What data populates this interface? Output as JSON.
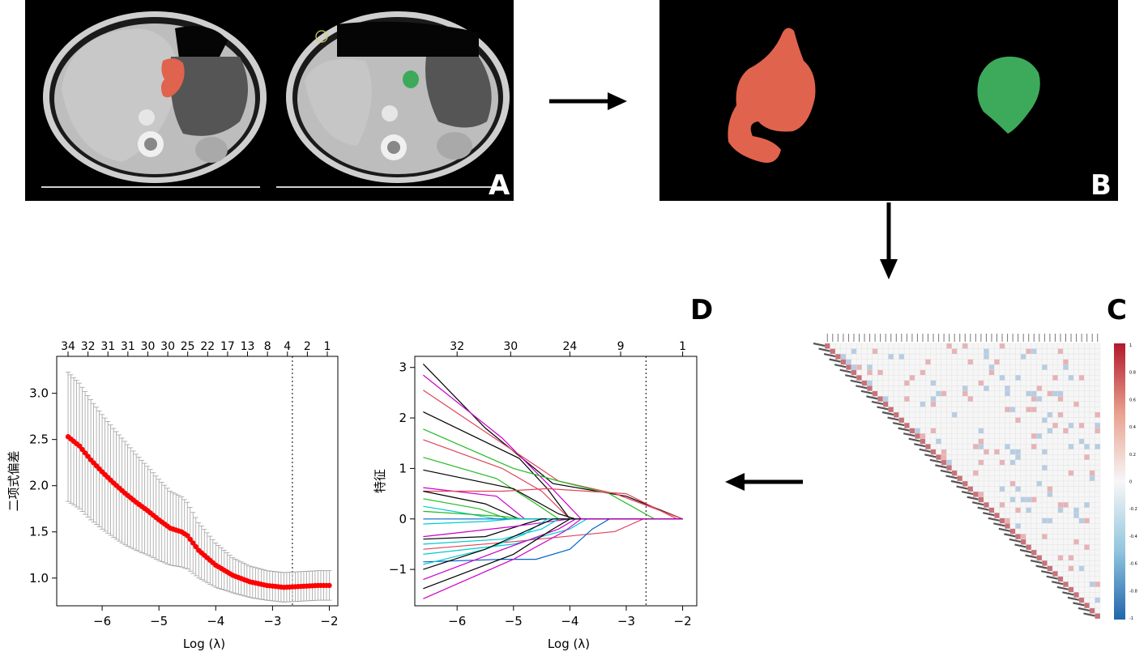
{
  "panels": {
    "A": {
      "letter": "A"
    },
    "B": {
      "letter": "B"
    },
    "C": {
      "letter": "C",
      "colorbar_ticks": [
        "1",
        "0.8",
        "0.6",
        "0.4",
        "0.2",
        "0",
        "-0.2",
        "-0.4",
        "-0.6",
        "-0.8",
        "-1"
      ]
    },
    "D": {
      "letter": "D"
    }
  },
  "colors": {
    "tumor_red": "#E0634D",
    "tumor_green": "#3CAA5A",
    "cv_points": "#FF0000",
    "errorbar": "#A0A0A0",
    "corr_positive": "#B2182B",
    "corr_negative": "#2166AC"
  },
  "chart_data": [
    {
      "type": "scatter",
      "ylabel": "二项式偏差",
      "xlabel": "Log (λ)",
      "top_axis_labels": [
        "34",
        "32",
        "31",
        "31",
        "30",
        "30",
        "25",
        "22",
        "17",
        "13",
        "8",
        "4",
        "2",
        "1"
      ],
      "xticks": [
        -6,
        -5,
        -4,
        -3,
        -2
      ],
      "yticks": [
        "1.0",
        "1.5",
        "2.0",
        "2.5",
        "3.0"
      ],
      "xlim": [
        -6.8,
        -1.85
      ],
      "ylim": [
        0.7,
        3.4
      ],
      "vline": -2.65,
      "curve_points": [
        {
          "x": -6.6,
          "y": 2.53,
          "err": 0.7
        },
        {
          "x": -6.4,
          "y": 2.43,
          "err": 0.68
        },
        {
          "x": -6.2,
          "y": 2.28,
          "err": 0.65
        },
        {
          "x": -6.0,
          "y": 2.15,
          "err": 0.62
        },
        {
          "x": -5.8,
          "y": 2.03,
          "err": 0.59
        },
        {
          "x": -5.6,
          "y": 1.92,
          "err": 0.56
        },
        {
          "x": -5.4,
          "y": 1.82,
          "err": 0.52
        },
        {
          "x": -5.2,
          "y": 1.73,
          "err": 0.48
        },
        {
          "x": -5.0,
          "y": 1.63,
          "err": 0.44
        },
        {
          "x": -4.8,
          "y": 1.54,
          "err": 0.4
        },
        {
          "x": -4.6,
          "y": 1.5,
          "err": 0.38
        },
        {
          "x": -4.5,
          "y": 1.46,
          "err": 0.36
        },
        {
          "x": -4.3,
          "y": 1.3,
          "err": 0.3
        },
        {
          "x": -4.0,
          "y": 1.14,
          "err": 0.24
        },
        {
          "x": -3.7,
          "y": 1.03,
          "err": 0.19
        },
        {
          "x": -3.4,
          "y": 0.96,
          "err": 0.17
        },
        {
          "x": -3.1,
          "y": 0.92,
          "err": 0.16
        },
        {
          "x": -2.8,
          "y": 0.9,
          "err": 0.16
        },
        {
          "x": -2.5,
          "y": 0.91,
          "err": 0.16
        },
        {
          "x": -2.2,
          "y": 0.92,
          "err": 0.16
        },
        {
          "x": -2.0,
          "y": 0.92,
          "err": 0.16
        }
      ]
    },
    {
      "type": "line",
      "ylabel": "特征",
      "xlabel": "Log (λ)",
      "top_axis_labels": [
        "32",
        "30",
        "24",
        "9",
        "1"
      ],
      "xticks": [
        -6,
        -5,
        -4,
        -3,
        -2
      ],
      "yticks": [
        "−1",
        "0",
        "1",
        "2",
        "3"
      ],
      "xlim": [
        -6.75,
        -1.75
      ],
      "ylim": [
        -1.72,
        3.22
      ],
      "vline": -2.65,
      "series": [
        {
          "color": "#000000",
          "points": [
            [
              -6.6,
              3.07
            ],
            [
              -5.5,
              1.8
            ],
            [
              -4.3,
              0.7
            ],
            [
              -3.0,
              0.45
            ],
            [
              -2.0,
              0
            ]
          ]
        },
        {
          "color": "#CC00CC",
          "points": [
            [
              -6.6,
              2.85
            ],
            [
              -5.2,
              1.6
            ],
            [
              -4.4,
              0.7
            ],
            [
              -3.8,
              0.0
            ]
          ]
        },
        {
          "color": "#E0445A",
          "points": [
            [
              -6.6,
              2.55
            ],
            [
              -5.0,
              1.35
            ],
            [
              -4.2,
              0.75
            ],
            [
              -3.2,
              0.5
            ],
            [
              -2.0,
              0
            ]
          ]
        },
        {
          "color": "#000000",
          "points": [
            [
              -6.6,
              2.12
            ],
            [
              -4.9,
              1.2
            ],
            [
              -4.4,
              0.6
            ],
            [
              -4.0,
              0.0
            ]
          ]
        },
        {
          "color": "#22BB22",
          "points": [
            [
              -6.6,
              1.78
            ],
            [
              -5.0,
              1.0
            ],
            [
              -4.2,
              0.75
            ],
            [
              -3.3,
              0.5
            ],
            [
              -2.5,
              0.0
            ]
          ]
        },
        {
          "color": "#E0445A",
          "points": [
            [
              -6.6,
              1.57
            ],
            [
              -5.2,
              1.0
            ],
            [
              -4.5,
              0.55
            ],
            [
              -4.0,
              0.0
            ]
          ]
        },
        {
          "color": "#22BB22",
          "points": [
            [
              -6.6,
              1.22
            ],
            [
              -5.3,
              0.8
            ],
            [
              -4.6,
              0.3
            ],
            [
              -4.2,
              0.0
            ]
          ]
        },
        {
          "color": "#000000",
          "points": [
            [
              -6.6,
              0.97
            ],
            [
              -5.0,
              0.6
            ],
            [
              -4.2,
              0.1
            ],
            [
              -3.9,
              0.0
            ]
          ]
        },
        {
          "color": "#CC00CC",
          "points": [
            [
              -6.6,
              0.62
            ],
            [
              -5.3,
              0.45
            ],
            [
              -4.8,
              0.0
            ]
          ]
        },
        {
          "color": "#E0445A",
          "points": [
            [
              -6.6,
              0.55
            ],
            [
              -5.2,
              0.55
            ],
            [
              -4.4,
              0.6
            ],
            [
              -3.0,
              0.5
            ],
            [
              -2.1,
              0.0
            ]
          ]
        },
        {
          "color": "#000000",
          "points": [
            [
              -6.6,
              0.55
            ],
            [
              -5.5,
              0.3
            ],
            [
              -4.9,
              0.0
            ]
          ]
        },
        {
          "color": "#22BB22",
          "points": [
            [
              -6.6,
              0.4
            ],
            [
              -5.6,
              0.2
            ],
            [
              -5.1,
              0.0
            ]
          ]
        },
        {
          "color": "#00CCCC",
          "points": [
            [
              -6.6,
              0.25
            ],
            [
              -5.8,
              0.1
            ],
            [
              -5.3,
              0.0
            ]
          ]
        },
        {
          "color": "#22BB22",
          "points": [
            [
              -6.6,
              0.15
            ],
            [
              -5.2,
              0.05
            ],
            [
              -4.8,
              0.0
            ]
          ]
        },
        {
          "color": "#0066CC",
          "points": [
            [
              -6.6,
              0.0
            ],
            [
              -4.0,
              0.0
            ],
            [
              -3.0,
              0.0
            ]
          ]
        },
        {
          "color": "#00CCCC",
          "points": [
            [
              -6.6,
              -0.1
            ],
            [
              -5.5,
              -0.05
            ],
            [
              -5.0,
              0.0
            ]
          ]
        },
        {
          "color": "#000000",
          "points": [
            [
              -6.6,
              -0.4
            ],
            [
              -5.5,
              -0.35
            ],
            [
              -4.8,
              -0.1
            ],
            [
              -4.5,
              0.0
            ]
          ]
        },
        {
          "color": "#CC00CC",
          "points": [
            [
              -6.6,
              -0.35
            ],
            [
              -5.0,
              -0.15
            ],
            [
              -4.0,
              0.0
            ]
          ]
        },
        {
          "color": "#00CCCC",
          "points": [
            [
              -6.6,
              -0.5
            ],
            [
              -5.2,
              -0.4
            ],
            [
              -4.5,
              -0.2
            ],
            [
              -4.2,
              0.0
            ]
          ]
        },
        {
          "color": "#E0445A",
          "points": [
            [
              -6.6,
              -0.6
            ],
            [
              -5.0,
              -0.45
            ],
            [
              -3.2,
              -0.25
            ],
            [
              -2.7,
              0.0
            ]
          ]
        },
        {
          "color": "#00CCCC",
          "points": [
            [
              -6.6,
              -0.7
            ],
            [
              -5.0,
              -0.5
            ],
            [
              -4.0,
              -0.2
            ],
            [
              -3.7,
              0.0
            ]
          ]
        },
        {
          "color": "#0066CC",
          "points": [
            [
              -6.6,
              -0.85
            ],
            [
              -5.2,
              -0.8
            ],
            [
              -4.6,
              -0.8
            ],
            [
              -4.0,
              -0.6
            ],
            [
              -3.6,
              -0.2
            ],
            [
              -3.3,
              0.0
            ]
          ]
        },
        {
          "color": "#00CCCC",
          "points": [
            [
              -6.6,
              -0.9
            ],
            [
              -5.5,
              -0.6
            ],
            [
              -4.8,
              -0.3
            ],
            [
              -4.4,
              0.0
            ]
          ]
        },
        {
          "color": "#000000",
          "points": [
            [
              -6.6,
              -1.0
            ],
            [
              -5.5,
              -0.6
            ],
            [
              -4.5,
              -0.1
            ],
            [
              -4.3,
              0.0
            ]
          ]
        },
        {
          "color": "#CC00CC",
          "points": [
            [
              -6.6,
              -1.2
            ],
            [
              -5.3,
              -0.65
            ],
            [
              -4.2,
              -0.2
            ],
            [
              -3.9,
              0.0
            ]
          ]
        },
        {
          "color": "#000000",
          "points": [
            [
              -6.6,
              -1.38
            ],
            [
              -5.0,
              -0.7
            ],
            [
              -4.3,
              -0.2
            ],
            [
              -4.0,
              0.0
            ]
          ]
        },
        {
          "color": "#CC00CC",
          "points": [
            [
              -6.6,
              -1.58
            ],
            [
              -5.0,
              -0.8
            ],
            [
              -4.1,
              -0.25
            ],
            [
              -3.8,
              0.0
            ]
          ]
        }
      ]
    }
  ]
}
